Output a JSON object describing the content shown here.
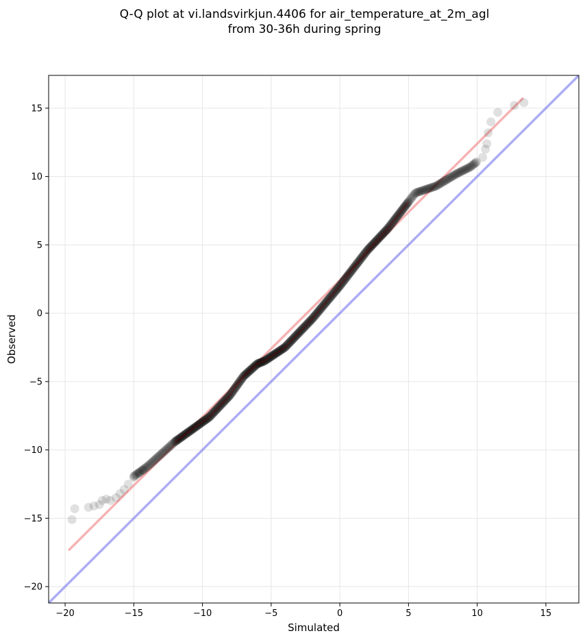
{
  "chart_data": {
    "type": "scatter",
    "title_lines": [
      "Q-Q plot at vi.landsvirkjun.4406 for air_temperature_at_2m_agl",
      "from 30-36h during spring"
    ],
    "xlabel": "Simulated",
    "ylabel": "Observed",
    "xlim": [
      -21.2,
      17.4
    ],
    "ylim": [
      -21.2,
      17.4
    ],
    "xticks": [
      -20,
      -15,
      -10,
      -5,
      0,
      5,
      10,
      15
    ],
    "yticks": [
      -20,
      -15,
      -10,
      -5,
      0,
      5,
      10,
      15
    ],
    "grid": true,
    "legend": "none",
    "colors": {
      "points": "#000000",
      "fit_line": "#f08080",
      "identity_line": "#8080f0",
      "dense_core": "#8b0000"
    },
    "lines": [
      {
        "role": "identity",
        "x": [
          -21.2,
          17.4
        ],
        "y": [
          -21.2,
          17.4
        ]
      },
      {
        "role": "fit",
        "x": [
          -19.7,
          13.3
        ],
        "y": [
          -17.3,
          15.7
        ]
      }
    ],
    "quantile_curve": {
      "x": [
        -19.0,
        -15.5,
        -14.0,
        -12.0,
        -9.5,
        -8.0,
        -7.0,
        -6.0,
        -5.5,
        -4.0,
        -2.0,
        0.0,
        2.0,
        3.5,
        4.5,
        5.5,
        7.0,
        8.5,
        9.5,
        10.0
      ],
      "y": [
        -15.8,
        -12.3,
        -11.2,
        -9.4,
        -7.6,
        -6.0,
        -4.6,
        -3.7,
        -3.5,
        -2.5,
        -0.4,
        2.0,
        4.6,
        6.2,
        7.5,
        8.8,
        9.3,
        10.2,
        10.7,
        11.1
      ]
    },
    "points": [
      {
        "x": -19.5,
        "y": -15.1
      },
      {
        "x": -19.3,
        "y": -14.3
      },
      {
        "x": -18.3,
        "y": -14.2
      },
      {
        "x": -17.9,
        "y": -14.1
      },
      {
        "x": -17.5,
        "y": -14.0
      },
      {
        "x": -17.3,
        "y": -13.7
      },
      {
        "x": -17.0,
        "y": -13.6
      },
      {
        "x": -16.7,
        "y": -13.7
      },
      {
        "x": -16.3,
        "y": -13.5
      },
      {
        "x": -16.0,
        "y": -13.2
      },
      {
        "x": -15.7,
        "y": -12.9
      },
      {
        "x": -15.4,
        "y": -12.5
      },
      {
        "x": -15.0,
        "y": -12.0
      },
      {
        "x": -14.6,
        "y": -11.7
      },
      {
        "x": -14.3,
        "y": -11.5
      },
      {
        "x": 10.4,
        "y": 11.4
      },
      {
        "x": 10.6,
        "y": 12.0
      },
      {
        "x": 10.7,
        "y": 12.4
      },
      {
        "x": 10.8,
        "y": 13.2
      },
      {
        "x": 11.0,
        "y": 14.0
      },
      {
        "x": 11.5,
        "y": 14.7
      },
      {
        "x": 12.7,
        "y": 15.2
      },
      {
        "x": 13.4,
        "y": 15.4
      }
    ]
  }
}
